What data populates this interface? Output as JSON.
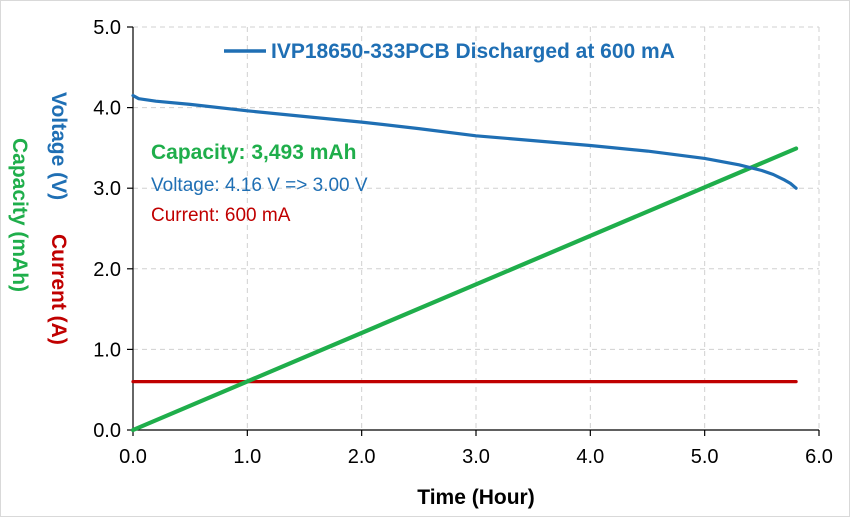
{
  "chart_data": {
    "type": "line",
    "legend": {
      "label": "IVP18650-333PCB Discharged at 600 mA",
      "placement": "top"
    },
    "xlabel": "Time (Hour)",
    "ylabel": {
      "voltage": "Voltage (V)",
      "current": "Current (A)",
      "capacity": "Capacity (mAh)"
    },
    "xlim": [
      0,
      6
    ],
    "ylim": [
      0,
      5
    ],
    "xticks": [
      "0.0",
      "1.0",
      "2.0",
      "3.0",
      "4.0",
      "5.0",
      "6.0"
    ],
    "yticks": [
      "0.0",
      "1.0",
      "2.0",
      "3.0",
      "4.0",
      "5.0"
    ],
    "grid": true,
    "annotations": {
      "capacity": "Capacity: 3,493 mAh",
      "voltage": "Voltage: 4.16 V => 3.00 V",
      "current": "Current: 600 mA"
    },
    "colors": {
      "voltage": "#1f6fb4",
      "current": "#c00000",
      "capacity": "#1fae4b"
    },
    "series": [
      {
        "name": "IVP18650-333PCB Discharged at 600 mA",
        "role": "voltage",
        "x": [
          0,
          0.05,
          0.2,
          0.5,
          1.0,
          1.5,
          2.0,
          2.5,
          3.0,
          3.5,
          4.0,
          4.5,
          5.0,
          5.3,
          5.5,
          5.6,
          5.7,
          5.75,
          5.8
        ],
        "y": [
          4.15,
          4.11,
          4.08,
          4.04,
          3.96,
          3.89,
          3.82,
          3.74,
          3.65,
          3.59,
          3.53,
          3.46,
          3.37,
          3.29,
          3.22,
          3.17,
          3.1,
          3.06,
          3.0
        ]
      },
      {
        "role": "current",
        "x": [
          0,
          5.8
        ],
        "y": [
          0.6,
          0.6
        ]
      },
      {
        "role": "capacity",
        "x": [
          0,
          5.8
        ],
        "y": [
          0,
          3.493
        ]
      }
    ]
  }
}
